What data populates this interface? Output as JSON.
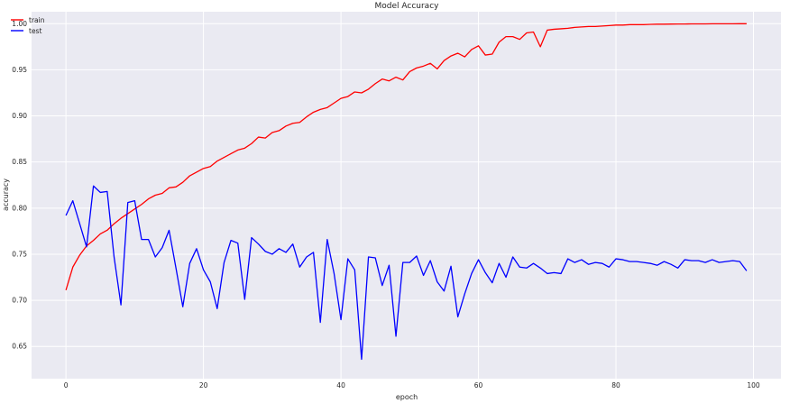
{
  "chart_data": {
    "type": "line",
    "title": "Model Accuracy",
    "xlabel": "epoch",
    "ylabel": "accuracy",
    "xlim": [
      -5,
      104
    ],
    "ylim": [
      0.615,
      1.013
    ],
    "x_ticks": [
      0,
      20,
      40,
      60,
      80,
      100
    ],
    "y_ticks": [
      0.65,
      0.7,
      0.75,
      0.8,
      0.85,
      0.9,
      0.95,
      1.0
    ],
    "x_tick_labels": [
      "0",
      "20",
      "40",
      "60",
      "80",
      "100"
    ],
    "y_tick_labels": [
      "0.65",
      "0.70",
      "0.75",
      "0.80",
      "0.85",
      "0.90",
      "0.95",
      "1.00"
    ],
    "grid": true,
    "legend_position": "top-left",
    "colors": {
      "plot_background": "#eaeaf2",
      "train": "#ff0000",
      "test": "#0000ff"
    },
    "series": [
      {
        "name": "train",
        "color": "#ff0000",
        "values": [
          0.711,
          0.736,
          0.749,
          0.759,
          0.765,
          0.772,
          0.776,
          0.783,
          0.789,
          0.794,
          0.799,
          0.804,
          0.81,
          0.814,
          0.816,
          0.822,
          0.823,
          0.828,
          0.835,
          0.839,
          0.843,
          0.845,
          0.851,
          0.855,
          0.859,
          0.863,
          0.865,
          0.87,
          0.877,
          0.876,
          0.882,
          0.884,
          0.889,
          0.892,
          0.893,
          0.899,
          0.904,
          0.907,
          0.909,
          0.914,
          0.919,
          0.921,
          0.926,
          0.925,
          0.929,
          0.935,
          0.94,
          0.938,
          0.942,
          0.939,
          0.948,
          0.952,
          0.954,
          0.957,
          0.951,
          0.96,
          0.965,
          0.968,
          0.964,
          0.972,
          0.976,
          0.966,
          0.967,
          0.98,
          0.986,
          0.986,
          0.983,
          0.99,
          0.991,
          0.975,
          0.993,
          0.994,
          0.9945,
          0.995,
          0.996,
          0.9965,
          0.997,
          0.997,
          0.9975,
          0.998,
          0.9985,
          0.9985,
          0.999,
          0.999,
          0.999,
          0.9993,
          0.9995,
          0.9995,
          0.9996,
          0.9997,
          0.9997,
          0.9998,
          0.9998,
          0.9998,
          0.9999,
          0.9999,
          0.9999,
          0.9999,
          1.0,
          1.0
        ]
      },
      {
        "name": "test",
        "color": "#0000ff",
        "values": [
          0.792,
          0.808,
          0.783,
          0.758,
          0.824,
          0.817,
          0.818,
          0.747,
          0.695,
          0.806,
          0.808,
          0.766,
          0.766,
          0.747,
          0.757,
          0.776,
          0.735,
          0.693,
          0.74,
          0.756,
          0.733,
          0.72,
          0.691,
          0.741,
          0.765,
          0.762,
          0.701,
          0.768,
          0.761,
          0.753,
          0.75,
          0.756,
          0.752,
          0.761,
          0.736,
          0.747,
          0.752,
          0.676,
          0.766,
          0.729,
          0.679,
          0.745,
          0.733,
          0.636,
          0.747,
          0.746,
          0.716,
          0.738,
          0.661,
          0.741,
          0.741,
          0.748,
          0.727,
          0.743,
          0.72,
          0.71,
          0.737,
          0.682,
          0.707,
          0.729,
          0.744,
          0.73,
          0.719,
          0.74,
          0.725,
          0.747,
          0.736,
          0.735,
          0.74,
          0.735,
          0.729,
          0.73,
          0.729,
          0.745,
          0.741,
          0.744,
          0.739,
          0.741,
          0.74,
          0.736,
          0.745,
          0.744,
          0.742,
          0.742,
          0.741,
          0.74,
          0.738,
          0.742,
          0.739,
          0.735,
          0.744,
          0.743,
          0.743,
          0.741,
          0.744,
          0.741,
          0.742,
          0.743,
          0.742,
          0.732
        ]
      }
    ]
  }
}
